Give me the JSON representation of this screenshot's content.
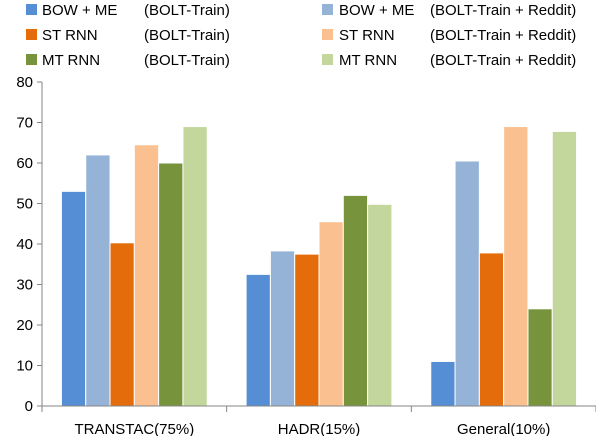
{
  "chart_data": {
    "type": "bar",
    "title": "",
    "xlabel": "",
    "ylabel": "",
    "ylim": [
      0,
      80
    ],
    "yticks": [
      0,
      10,
      20,
      30,
      40,
      50,
      60,
      70,
      80
    ],
    "grid": false,
    "legend_placement": "top",
    "categories": [
      "TRANSTAC(75%)",
      "HADR(15%)",
      "General(10%)"
    ],
    "series": [
      {
        "model": "BOW + ME",
        "data": "(BOLT-Train)",
        "color": "#558ed5",
        "values": [
          53,
          32.5,
          11
        ]
      },
      {
        "model": "BOW + ME",
        "data": "(BOLT-Train + Reddit)",
        "color": "#95b3d7",
        "values": [
          62,
          38.3,
          60.5
        ]
      },
      {
        "model": "ST RNN",
        "data": "(BOLT-Train)",
        "color": "#e46c0a",
        "values": [
          40.3,
          37.5,
          37.8
        ]
      },
      {
        "model": "ST RNN",
        "data": "(BOLT-Train + Reddit)",
        "color": "#fac090",
        "values": [
          64.5,
          45.5,
          69
        ]
      },
      {
        "model": "MT RNN",
        "data": "(BOLT-Train)",
        "color": "#77933c",
        "values": [
          60,
          52,
          24
        ]
      },
      {
        "model": "MT RNN",
        "data": "(BOLT-Train + Reddit)",
        "color": "#c3d69b",
        "values": [
          69,
          49.8,
          67.8
        ]
      }
    ]
  }
}
